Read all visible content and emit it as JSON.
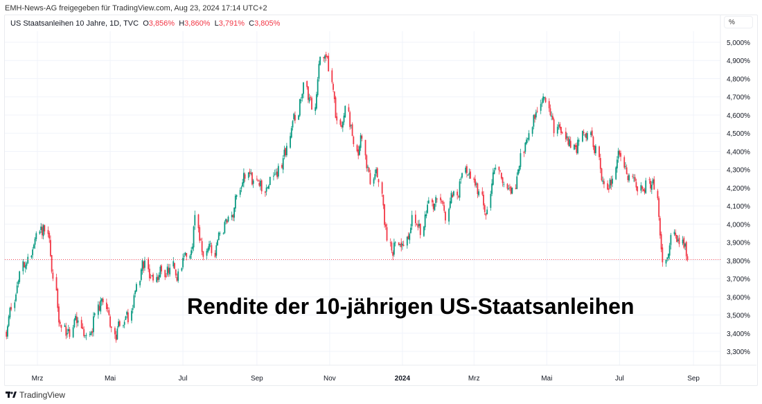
{
  "header": "EMH-News-AG freigegeben für TradingView.com, Aug 23, 2024 17:14 UTC+2",
  "legend": {
    "symbol": "US Staatsanleihen 10 Jahre, 1D, TVC",
    "o_label": "O",
    "o": "3,856%",
    "h_label": "H",
    "h": "3,860%",
    "l_label": "L",
    "l": "3,791%",
    "c_label": "C",
    "c": "3,805%"
  },
  "unit_button": "%",
  "brand": "TradingView",
  "colors": {
    "up": "#089981",
    "down": "#f23645",
    "grid": "#f0f3fa"
  },
  "chart_data": {
    "type": "candlestick",
    "title": "Rendite der 10-jährigen US-Staatsanleihen",
    "ylabel": "%",
    "ylim": [
      3.22,
      5.06
    ],
    "y_ticks": [
      "5,000%",
      "4,900%",
      "4,800%",
      "4,700%",
      "4,600%",
      "4,500%",
      "4,400%",
      "4,300%",
      "4,200%",
      "4,100%",
      "4,000%",
      "3,900%",
      "3,800%",
      "3,700%",
      "3,600%",
      "3,500%",
      "3,400%",
      "3,300%"
    ],
    "y_tick_values": [
      5.0,
      4.9,
      4.8,
      4.7,
      4.6,
      4.5,
      4.4,
      4.3,
      4.2,
      4.1,
      4.0,
      3.9,
      3.8,
      3.7,
      3.6,
      3.5,
      3.4,
      3.3
    ],
    "x_ticks": [
      {
        "label": "Mrz",
        "date": "2023-03-01"
      },
      {
        "label": "Mai",
        "date": "2023-05-01"
      },
      {
        "label": "Jul",
        "date": "2023-07-01"
      },
      {
        "label": "Sep",
        "date": "2023-09-01"
      },
      {
        "label": "Nov",
        "date": "2023-11-01"
      },
      {
        "label": "2024",
        "date": "2024-01-01"
      },
      {
        "label": "Mrz",
        "date": "2024-03-01"
      },
      {
        "label": "Mai",
        "date": "2024-05-01"
      },
      {
        "label": "Jul",
        "date": "2024-07-01"
      },
      {
        "label": "Sep",
        "date": "2024-09-01"
      }
    ],
    "last_close": 3.805,
    "start_date": "2023-02-03",
    "start_value": 3.4,
    "weekly_close": [
      3.53,
      3.74,
      3.82,
      3.95,
      3.96,
      3.7,
      3.43,
      3.38,
      3.47,
      3.39,
      3.51,
      3.57,
      3.43,
      3.44,
      3.46,
      3.67,
      3.8,
      3.69,
      3.74,
      3.76,
      3.74,
      3.82,
      4.05,
      3.82,
      3.84,
      3.95,
      4.04,
      4.16,
      4.25,
      4.24,
      4.18,
      4.26,
      4.32,
      4.43,
      4.57,
      4.78,
      4.63,
      4.92,
      4.84,
      4.57,
      4.65,
      4.44,
      4.47,
      4.22,
      4.23,
      3.91,
      3.9,
      3.88,
      4.05,
      3.94,
      4.13,
      4.14,
      4.02,
      4.18,
      4.28,
      4.25,
      4.18,
      4.08,
      4.31,
      4.22,
      4.2,
      4.39,
      4.5,
      4.62,
      4.67,
      4.5,
      4.5,
      4.42,
      4.46,
      4.5,
      4.43,
      4.22,
      4.25,
      4.37,
      4.27,
      4.18,
      4.24,
      4.19,
      3.79,
      3.94,
      3.89,
      3.805
    ]
  }
}
